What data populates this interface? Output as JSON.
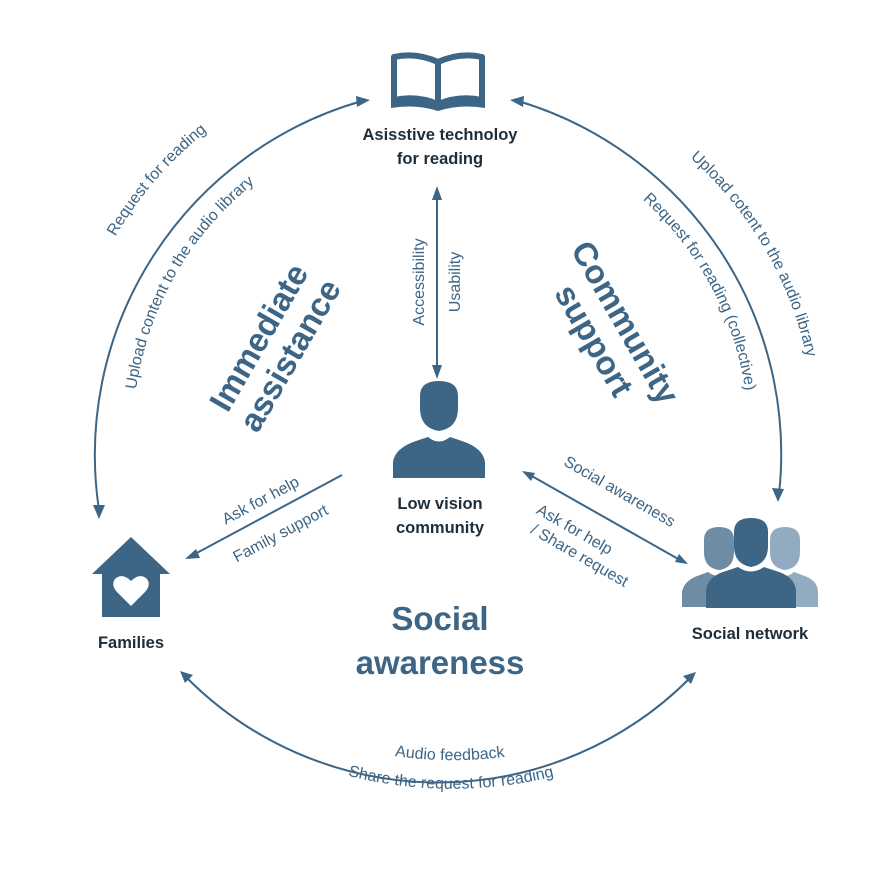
{
  "nodes": {
    "reading_tech": {
      "line1": "Asisstive technoloy",
      "line2": "for reading",
      "icon": "open-book-icon"
    },
    "community": {
      "line1": "Low vision",
      "line2": "community",
      "icon": "person-icon"
    },
    "families": {
      "label": "Families",
      "icon": "house-heart-icon"
    },
    "social_network": {
      "label": "Social network",
      "icon": "group-icon"
    }
  },
  "themes": {
    "immediate": {
      "line1": "Immediate",
      "line2": "assistance"
    },
    "community": {
      "line1": "Community",
      "line2": "support"
    },
    "social": {
      "line1": "Social",
      "line2": "awareness"
    }
  },
  "flows": {
    "left_outer": "Request for reading",
    "left_inner": "Upload content to the audio library",
    "right_outer": "Upload cotent to the audio library",
    "right_inner": "Request for reading (collective)",
    "center_left": "Accessibility",
    "center_right": "Usability",
    "families_above": "Ask for help",
    "families_below": "Family support",
    "social_above": "Social awareness",
    "social_below_1": "Ask for help",
    "social_below_2": "/ Share request",
    "bottom_inner": "Audio feedback",
    "bottom_outer": "Share the request for reading"
  },
  "colors": {
    "primary": "#3d6585",
    "dark_text": "#1d2d3a",
    "light_person": "#93abc0",
    "mid_person": "#6f8ca5"
  }
}
